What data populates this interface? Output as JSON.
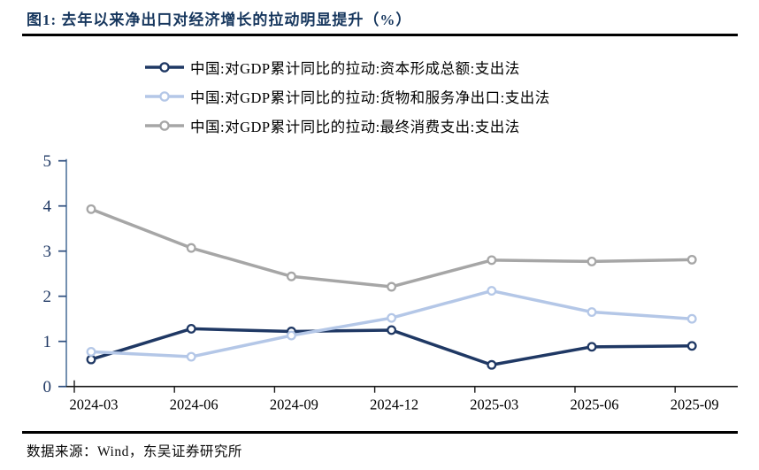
{
  "title": "图1:  去年以来净出口对经济增长的拉动明显提升（%）",
  "source": "数据来源：Wind，东吴证券研究所",
  "colors": {
    "title_navy": "#17375e",
    "axis_y_line": "#5b7ca3",
    "axis_y_tick": "#2e4e7e",
    "axis_x_line": "#1a1a1a",
    "divider": "#000000"
  },
  "chart_data": {
    "type": "line",
    "title": "去年以来净出口对经济增长的拉动明显提升（%）",
    "categories": [
      "2024-03",
      "2024-06",
      "2024-09",
      "2024-12",
      "2025-03",
      "2025-06",
      "2025-09"
    ],
    "series": [
      {
        "name": "中国:对GDP累计同比的拉动:资本形成总额:支出法",
        "color": "#1f3864",
        "values": [
          0.6,
          1.28,
          1.22,
          1.25,
          0.48,
          0.88,
          0.9
        ]
      },
      {
        "name": "中国:对GDP累计同比的拉动:货物和服务净出口:支出法",
        "color": "#b4c7e7",
        "values": [
          0.77,
          0.66,
          1.13,
          1.52,
          2.12,
          1.65,
          1.5
        ]
      },
      {
        "name": "中国:对GDP累计同比的拉动:最终消费支出:支出法",
        "color": "#a6a6a6",
        "values": [
          3.93,
          3.07,
          2.44,
          2.21,
          2.8,
          2.77,
          2.81
        ]
      }
    ],
    "ylim": [
      0,
      5
    ],
    "yticks": [
      0,
      1,
      2,
      3,
      4,
      5
    ],
    "xlabel": "",
    "ylabel": "",
    "grid": false,
    "legend_position": "top",
    "marker": "open-circle"
  }
}
